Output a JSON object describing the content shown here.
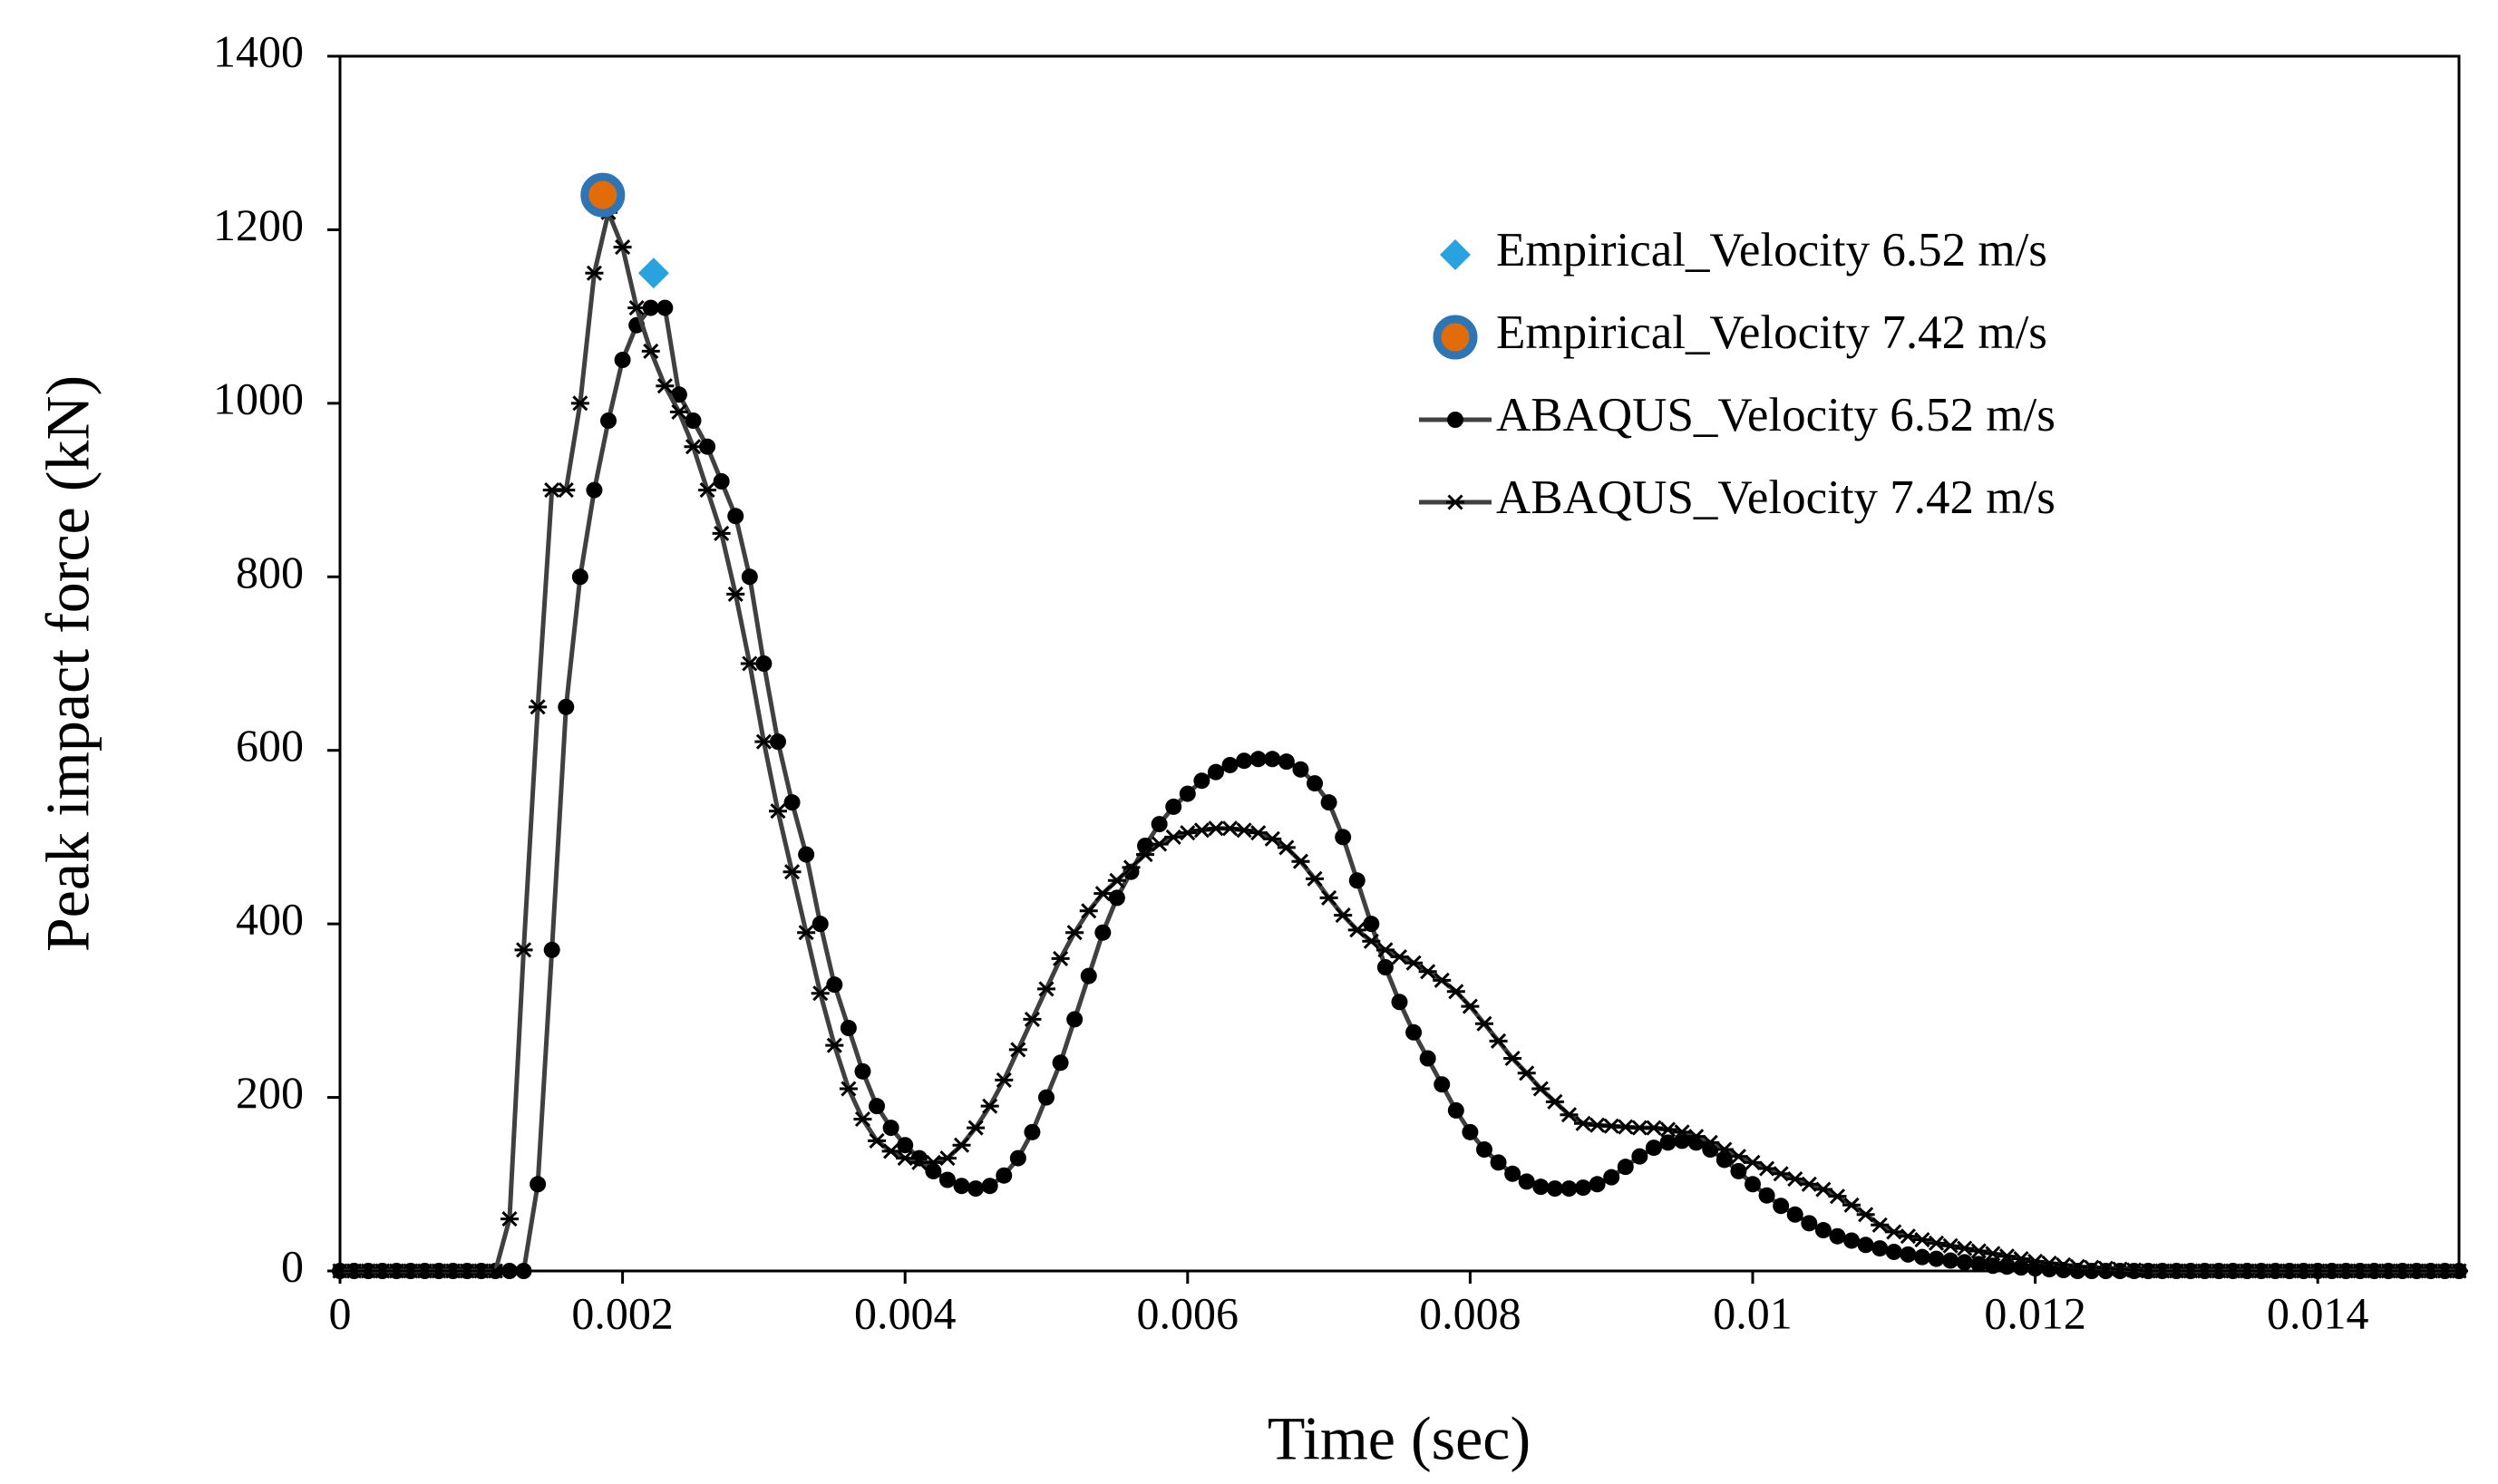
{
  "chart_data": {
    "type": "line",
    "xlabel": "Time (sec)",
    "ylabel": "Peak impact force (kN)",
    "xlim": [
      0,
      0.015
    ],
    "xticks": [
      0,
      0.002,
      0.004,
      0.006,
      0.008,
      0.01,
      0.012,
      0.014
    ],
    "ylim": [
      0,
      1400
    ],
    "yticks": [
      0,
      200,
      400,
      600,
      800,
      1000,
      1200,
      1400
    ],
    "grid": false,
    "legend": "upper right",
    "x": [
      0,
      0.0001,
      0.0002,
      0.0003,
      0.0004,
      0.0005,
      0.0006,
      0.0007,
      0.0008,
      0.0009,
      0.001,
      0.0011,
      0.0012,
      0.0013,
      0.0014,
      0.0015,
      0.0016,
      0.0017,
      0.0018,
      0.0019,
      0.002,
      0.0021,
      0.0022,
      0.0023,
      0.0024,
      0.0025,
      0.0026,
      0.0027,
      0.0028,
      0.0029,
      0.003,
      0.0031,
      0.0032,
      0.0033,
      0.0034,
      0.0035,
      0.0036,
      0.0037,
      0.0038,
      0.0039,
      0.004,
      0.0041,
      0.0042,
      0.0043,
      0.0044,
      0.0045,
      0.0046,
      0.0047,
      0.0048,
      0.0049,
      0.005,
      0.0051,
      0.0052,
      0.0053,
      0.0054,
      0.0055,
      0.0056,
      0.0057,
      0.0058,
      0.0059,
      0.006,
      0.0061,
      0.0062,
      0.0063,
      0.0064,
      0.0065,
      0.0066,
      0.0067,
      0.0068,
      0.0069,
      0.007,
      0.0071,
      0.0072,
      0.0073,
      0.0074,
      0.0075,
      0.0076,
      0.0077,
      0.0078,
      0.0079,
      0.008,
      0.0081,
      0.0082,
      0.0083,
      0.0084,
      0.0085,
      0.0086,
      0.0087,
      0.0088,
      0.0089,
      0.009,
      0.0091,
      0.0092,
      0.0093,
      0.0094,
      0.0095,
      0.0096,
      0.0097,
      0.0098,
      0.0099,
      0.01,
      0.0101,
      0.0102,
      0.0103,
      0.0104,
      0.0105,
      0.0106,
      0.0107,
      0.0108,
      0.0109,
      0.011,
      0.0111,
      0.0112,
      0.0113,
      0.0114,
      0.0115,
      0.0116,
      0.0117,
      0.0118,
      0.0119,
      0.012,
      0.0121,
      0.0122,
      0.0123,
      0.0124,
      0.0125,
      0.0126,
      0.0127,
      0.0128,
      0.0129,
      0.013,
      0.0131,
      0.0132,
      0.0133,
      0.0134,
      0.0135,
      0.0136,
      0.0137,
      0.0138,
      0.0139,
      0.014,
      0.0141,
      0.0142,
      0.0143,
      0.0144,
      0.0145,
      0.0146,
      0.0147,
      0.0148,
      0.0149,
      0.015
    ],
    "series": [
      {
        "name": "Empirical_Velocity 6.52 m/s",
        "color": "#29a3e0",
        "marker": "diamond",
        "line": false,
        "x": [
          0.00222
        ],
        "values": [
          1150
        ]
      },
      {
        "name": "Empirical_Velocity 7.42 m/s",
        "color": "#e36c0a",
        "edgecolor": "#2e75b6",
        "marker": "circle",
        "line": false,
        "x": [
          0.00186
        ],
        "values": [
          1240
        ]
      },
      {
        "name": "ABAQUS_Velocity 6.52 m/s",
        "color": "#000000",
        "linecolor": "#404040",
        "marker": "dot",
        "line": true,
        "values": [
          0,
          0,
          0,
          0,
          0,
          0,
          0,
          0,
          0,
          0,
          0,
          0,
          0,
          0,
          100,
          370,
          650,
          800,
          900,
          980,
          1050,
          1090,
          1110,
          1110,
          1010,
          980,
          950,
          910,
          870,
          800,
          700,
          610,
          540,
          480,
          400,
          330,
          280,
          230,
          190,
          165,
          145,
          130,
          115,
          105,
          98,
          95,
          98,
          110,
          130,
          160,
          200,
          240,
          290,
          340,
          390,
          430,
          460,
          490,
          515,
          535,
          550,
          565,
          575,
          583,
          588,
          590,
          590,
          587,
          578,
          562,
          540,
          500,
          450,
          400,
          350,
          310,
          275,
          245,
          215,
          185,
          160,
          140,
          125,
          112,
          103,
          97,
          95,
          95,
          96,
          100,
          108,
          120,
          132,
          142,
          148,
          150,
          148,
          140,
          128,
          115,
          100,
          87,
          75,
          65,
          55,
          47,
          40,
          35,
          30,
          26,
          22,
          19,
          16,
          14,
          12,
          10,
          8,
          6,
          5,
          4,
          3,
          2,
          1,
          0,
          0,
          0,
          0,
          0,
          0,
          0,
          0,
          0,
          0,
          0,
          0,
          0,
          0,
          0,
          0,
          0,
          0,
          0,
          0,
          0,
          0,
          0,
          0,
          0,
          0,
          0,
          0
        ]
      },
      {
        "name": "ABAQUS_Velocity 7.42 m/s",
        "color": "#000000",
        "linecolor": "#404040",
        "marker": "star",
        "line": true,
        "values": [
          0,
          0,
          0,
          0,
          0,
          0,
          0,
          0,
          0,
          0,
          0,
          0,
          60,
          370,
          650,
          900,
          900,
          1000,
          1150,
          1220,
          1180,
          1110,
          1060,
          1020,
          990,
          950,
          900,
          850,
          780,
          700,
          610,
          530,
          460,
          390,
          320,
          260,
          210,
          175,
          150,
          138,
          130,
          125,
          125,
          130,
          145,
          165,
          190,
          220,
          255,
          290,
          325,
          360,
          390,
          415,
          435,
          450,
          465,
          480,
          492,
          500,
          505,
          508,
          510,
          510,
          508,
          505,
          498,
          488,
          472,
          452,
          430,
          410,
          393,
          380,
          370,
          362,
          355,
          345,
          335,
          322,
          305,
          285,
          265,
          245,
          228,
          210,
          195,
          180,
          170,
          168,
          167,
          166,
          165,
          165,
          163,
          160,
          155,
          148,
          140,
          132,
          125,
          118,
          112,
          106,
          100,
          94,
          86,
          76,
          65,
          53,
          45,
          40,
          36,
          32,
          29,
          26,
          23,
          20,
          17,
          14,
          11,
          9,
          7,
          5,
          4,
          3,
          2,
          1,
          0,
          0,
          0,
          0,
          0,
          0,
          0,
          0,
          0,
          0,
          0,
          0,
          0,
          0,
          0,
          0,
          0,
          0,
          0,
          0,
          0,
          0,
          0
        ]
      }
    ]
  }
}
